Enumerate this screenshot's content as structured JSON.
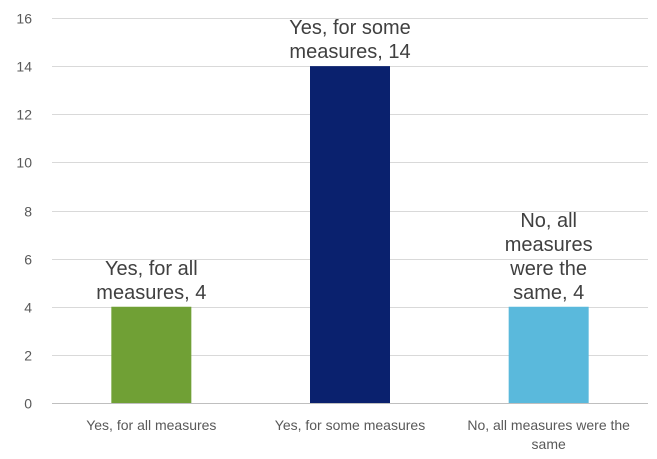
{
  "chart_data": {
    "type": "bar",
    "title": "",
    "xlabel": "",
    "ylabel": "",
    "categories": [
      "Yes, for all measures",
      "Yes, for some measures",
      "No, all measures were the same"
    ],
    "values": [
      4,
      14,
      4
    ],
    "colors": [
      "#70a035",
      "#0a216e",
      "#5ab9dc"
    ],
    "ylim": [
      0,
      16
    ],
    "yticks": [
      0,
      2,
      4,
      6,
      8,
      10,
      12,
      14,
      16
    ],
    "data_labels": [
      [
        "Yes, for all",
        "measures, 4"
      ],
      [
        "Yes, for some",
        "measures, 14"
      ],
      [
        "No, all",
        "measures",
        "were the",
        "same, 4"
      ]
    ],
    "category_label_lines": [
      [
        "Yes, for all measures"
      ],
      [
        "Yes, for some measures"
      ],
      [
        "No, all measures were the",
        "same"
      ]
    ],
    "grid": true,
    "legend": "none"
  }
}
